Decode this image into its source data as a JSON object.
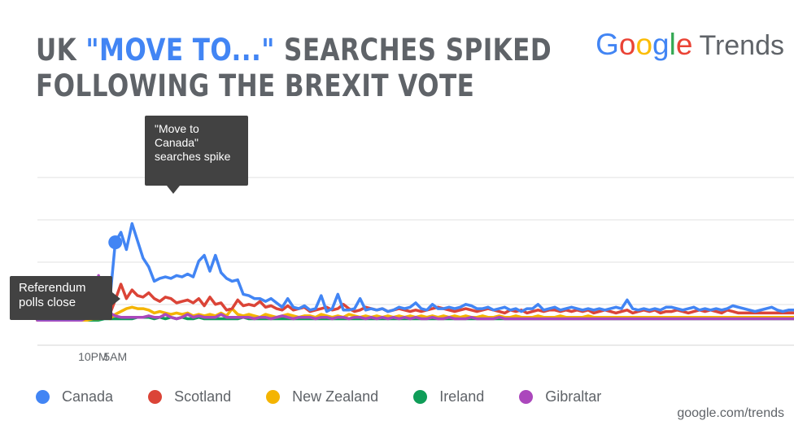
{
  "header": {
    "title_part1": "UK ",
    "title_highlight": "\"MOVE TO...\"",
    "title_part2": " SEARCHES SPIKED",
    "title_line2": "FOLLOWING THE BREXIT VOTE"
  },
  "logo": {
    "letters": [
      "G",
      "o",
      "o",
      "g",
      "l",
      "e"
    ],
    "colors": [
      "#4285f4",
      "#ea4335",
      "#fbbc05",
      "#4285f4",
      "#34a853",
      "#ea4335"
    ],
    "trends": "Trends"
  },
  "annotations": {
    "spike": "\"Move to Canada\" searches spike",
    "polls": "Referendum polls close"
  },
  "source": "google.com/trends",
  "colors": {
    "Canada": "#4285f4",
    "Scotland": "#db4437",
    "New Zealand": "#f4b400",
    "Ireland": "#0f9d58",
    "Gibraltar": "#ab47bc",
    "grid": "#e0e0e0",
    "callout": "#424242"
  },
  "chart_data": {
    "type": "line",
    "title": "UK \"MOVE TO...\" SEARCHES SPIKED FOLLOWING THE BREXIT VOTE",
    "x_ticks": [
      {
        "index": 10,
        "label": "10PM"
      },
      {
        "index": 14,
        "label": "5AM"
      }
    ],
    "ylim": [
      0,
      100
    ],
    "grid": true,
    "legend_position": "bottom",
    "series": [
      {
        "name": "Canada",
        "color": "#4285f4",
        "values": [
          2,
          2,
          2,
          2,
          2,
          2,
          2,
          2,
          2,
          4,
          6,
          10,
          20,
          14,
          55,
          62,
          50,
          68,
          56,
          44,
          38,
          28,
          30,
          31,
          30,
          32,
          31,
          33,
          31,
          42,
          46,
          35,
          46,
          34,
          30,
          28,
          29,
          19,
          18,
          16,
          16,
          14,
          16,
          13,
          10,
          16,
          10,
          9,
          11,
          8,
          9,
          18,
          7,
          9,
          19,
          8,
          8,
          9,
          16,
          8,
          9,
          8,
          9,
          7,
          8,
          10,
          9,
          10,
          13,
          9,
          8,
          12,
          9,
          9,
          10,
          9,
          10,
          12,
          11,
          9,
          9,
          10,
          8,
          9,
          10,
          8,
          9,
          7,
          9,
          9,
          12,
          8,
          9,
          10,
          8,
          9,
          10,
          9,
          8,
          9,
          8,
          9,
          8,
          9,
          10,
          9,
          15,
          9,
          8,
          9,
          8,
          9,
          8,
          10,
          10,
          9,
          8,
          9,
          10,
          8,
          9,
          8,
          9,
          8,
          9,
          11,
          10,
          9,
          8,
          7,
          8,
          9,
          10,
          8,
          7,
          8,
          8
        ]
      },
      {
        "name": "Scotland",
        "color": "#db4437",
        "values": [
          1,
          1,
          1,
          1,
          1,
          1,
          1,
          1,
          2,
          3,
          4,
          5,
          6,
          5,
          15,
          26,
          16,
          22,
          18,
          17,
          20,
          16,
          14,
          17,
          16,
          13,
          14,
          15,
          13,
          16,
          11,
          17,
          12,
          13,
          8,
          9,
          15,
          11,
          12,
          11,
          14,
          10,
          11,
          9,
          8,
          11,
          8,
          9,
          10,
          7,
          8,
          9,
          10,
          8,
          9,
          12,
          9,
          7,
          8,
          10,
          9,
          8,
          9,
          7,
          8,
          9,
          8,
          7,
          8,
          7,
          8,
          9,
          10,
          9,
          8,
          7,
          8,
          9,
          8,
          7,
          8,
          9,
          8,
          7,
          6,
          8,
          7,
          8,
          6,
          7,
          8,
          7,
          8,
          8,
          7,
          8,
          7,
          8,
          7,
          8,
          6,
          7,
          8,
          7,
          6,
          7,
          8,
          6,
          7,
          8,
          7,
          8,
          6,
          7,
          7,
          8,
          7,
          6,
          7,
          8,
          7,
          8,
          7,
          6,
          8,
          7,
          6,
          6,
          6,
          6,
          6,
          6,
          6,
          6,
          6,
          6,
          6
        ]
      },
      {
        "name": "New Zealand",
        "color": "#f4b400",
        "values": [
          1,
          1,
          1,
          1,
          1,
          1,
          1,
          1,
          1,
          1,
          2,
          2,
          3,
          2,
          5,
          7,
          9,
          10,
          9,
          9,
          8,
          6,
          7,
          6,
          5,
          6,
          5,
          6,
          4,
          5,
          4,
          5,
          4,
          6,
          4,
          9,
          5,
          4,
          5,
          4,
          3,
          5,
          4,
          3,
          4,
          5,
          4,
          3,
          4,
          4,
          3,
          5,
          4,
          3,
          4,
          3,
          5,
          4,
          3,
          4,
          3,
          4,
          3,
          4,
          3,
          4,
          3,
          4,
          3,
          4,
          3,
          4,
          3,
          4,
          3,
          4,
          3,
          4,
          3,
          3,
          4,
          3,
          3,
          4,
          3,
          3,
          4,
          3,
          3,
          3,
          4,
          3,
          3,
          3,
          4,
          3,
          3,
          3,
          3,
          4,
          3,
          3,
          3,
          3,
          3,
          3,
          3,
          3,
          3,
          3,
          3,
          3,
          3,
          3,
          3,
          3,
          3,
          3,
          3,
          3,
          3,
          3,
          3,
          3,
          3,
          3,
          3,
          3,
          3,
          3,
          3,
          3,
          3,
          3,
          3,
          3,
          3
        ]
      },
      {
        "name": "Ireland",
        "color": "#0f9d58",
        "values": [
          1,
          1,
          1,
          1,
          1,
          1,
          1,
          1,
          1,
          1,
          1,
          1,
          2,
          2,
          2,
          2,
          2,
          2,
          3,
          3,
          3,
          2,
          3,
          2,
          3,
          2,
          3,
          2,
          2,
          3,
          2,
          2,
          2,
          2,
          2,
          2,
          2,
          3,
          2,
          2,
          2,
          2,
          2,
          2,
          2,
          2,
          2,
          2,
          2,
          2,
          2,
          2,
          2,
          2,
          2,
          2,
          2,
          2,
          2,
          2,
          2,
          2,
          2,
          2,
          2,
          2,
          2,
          2,
          2,
          2,
          2,
          2,
          2,
          2,
          2,
          2,
          2,
          2,
          2,
          2,
          2,
          2,
          2,
          2,
          2,
          2,
          2,
          2,
          2,
          2,
          2,
          2,
          2,
          2,
          2,
          2,
          2,
          2,
          2,
          2,
          2,
          2,
          2,
          2,
          2,
          2,
          2,
          2,
          2,
          2,
          2,
          2,
          2,
          2,
          2,
          2,
          2,
          2,
          2,
          2,
          2,
          2,
          2,
          2,
          2,
          2,
          2,
          2,
          2,
          2,
          2,
          2,
          2,
          2,
          2,
          2,
          2
        ]
      },
      {
        "name": "Gibraltar",
        "color": "#ab47bc",
        "values": [
          1,
          1,
          1,
          1,
          1,
          1,
          1,
          1,
          1,
          3,
          6,
          32,
          10,
          6,
          4,
          3,
          3,
          3,
          3,
          3,
          4,
          3,
          3,
          5,
          3,
          2,
          3,
          5,
          3,
          4,
          3,
          3,
          3,
          5,
          3,
          3,
          3,
          3,
          3,
          2,
          3,
          3,
          2,
          3,
          4,
          3,
          2,
          3,
          3,
          3,
          2,
          3,
          3,
          2,
          3,
          3,
          2,
          3,
          3,
          2,
          3,
          2,
          3,
          2,
          3,
          2,
          3,
          2,
          3,
          2,
          2,
          3,
          2,
          2,
          3,
          2,
          2,
          2,
          3,
          2,
          2,
          2,
          2,
          3,
          2,
          2,
          2,
          2,
          2,
          2,
          2,
          2,
          2,
          2,
          2,
          2,
          2,
          2,
          2,
          2,
          2,
          2,
          2,
          2,
          2,
          2,
          2,
          2,
          2,
          2,
          2,
          2,
          2,
          2,
          2,
          2,
          2,
          2,
          2,
          2,
          2,
          2,
          2,
          2,
          2,
          2,
          2,
          2,
          2,
          2,
          2,
          2,
          2,
          2,
          2,
          2,
          2
        ]
      }
    ],
    "markers": [
      {
        "series": "Gibraltar",
        "index": 10,
        "label": "Referendum polls close"
      },
      {
        "series": "Canada",
        "index": 14,
        "label": "\"Move to Canada\" searches spike"
      }
    ]
  }
}
